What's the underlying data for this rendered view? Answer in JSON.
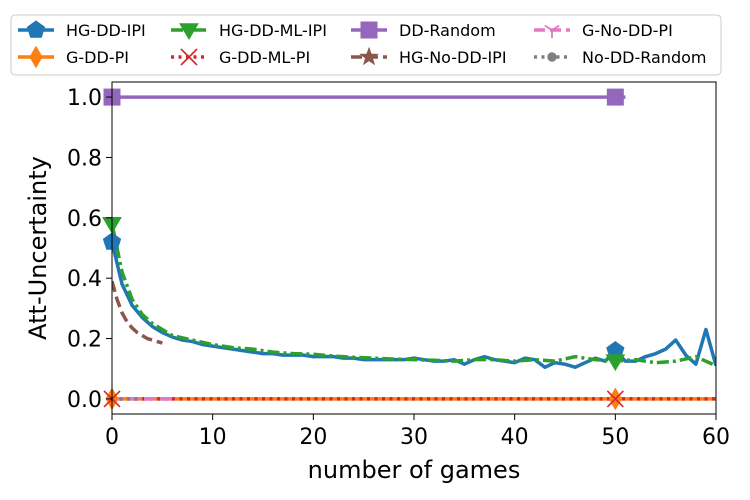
{
  "chart_data": {
    "type": "line",
    "title": "",
    "xlabel": "number of games",
    "ylabel": "Att-Uncertainty",
    "xlim": [
      0,
      60
    ],
    "ylim": [
      -0.05,
      1.05
    ],
    "xticks": [
      0,
      10,
      20,
      30,
      40,
      50,
      60
    ],
    "yticks": [
      0.0,
      0.2,
      0.4,
      0.6,
      0.8,
      1.0
    ],
    "xtick_labels": [
      "0",
      "10",
      "20",
      "30",
      "40",
      "50",
      "60"
    ],
    "ytick_labels": [
      "0.0",
      "0.2",
      "0.4",
      "0.6",
      "0.8",
      "1.0"
    ],
    "grid": false,
    "legend_position": "top",
    "series": [
      {
        "name": "HG-DD-IPI",
        "color": "#1f77b4",
        "dash": "solid",
        "marker": "pentagon",
        "markers_at": [
          0,
          50
        ],
        "x": [
          0,
          1,
          2,
          3,
          4,
          5,
          6,
          7,
          8,
          9,
          10,
          11,
          12,
          13,
          14,
          15,
          16,
          17,
          18,
          19,
          20,
          21,
          22,
          23,
          24,
          25,
          26,
          27,
          28,
          29,
          30,
          31,
          32,
          33,
          34,
          35,
          36,
          37,
          38,
          39,
          40,
          41,
          42,
          43,
          44,
          45,
          46,
          47,
          48,
          49,
          50,
          51,
          52,
          53,
          54,
          55,
          56,
          57,
          58,
          59,
          60
        ],
        "y": [
          0.52,
          0.38,
          0.31,
          0.27,
          0.24,
          0.22,
          0.205,
          0.195,
          0.19,
          0.18,
          0.175,
          0.17,
          0.165,
          0.16,
          0.155,
          0.15,
          0.15,
          0.145,
          0.145,
          0.145,
          0.14,
          0.14,
          0.14,
          0.135,
          0.135,
          0.13,
          0.13,
          0.13,
          0.13,
          0.13,
          0.135,
          0.13,
          0.125,
          0.125,
          0.13,
          0.115,
          0.13,
          0.14,
          0.13,
          0.125,
          0.12,
          0.135,
          0.13,
          0.105,
          0.12,
          0.115,
          0.105,
          0.12,
          0.135,
          0.125,
          0.16,
          0.125,
          0.125,
          0.14,
          0.15,
          0.165,
          0.195,
          0.145,
          0.115,
          0.23,
          0.11
        ]
      },
      {
        "name": "G-DD-PI",
        "color": "#ff7f0e",
        "dash": "solid",
        "marker": "diamond",
        "markers_at": [
          0,
          50
        ],
        "x": [
          0,
          60
        ],
        "y": [
          0.0,
          0.0
        ]
      },
      {
        "name": "HG-DD-ML-IPI",
        "color": "#2ca02c",
        "dash": "dashdot",
        "marker": "triangle-down",
        "markers_at": [
          0,
          50
        ],
        "x": [
          0,
          1,
          2,
          3,
          4,
          5,
          6,
          8,
          10,
          12,
          14,
          16,
          18,
          20,
          22,
          24,
          26,
          28,
          30,
          32,
          34,
          36,
          38,
          40,
          42,
          44,
          46,
          48,
          50,
          52,
          54,
          56,
          58,
          60
        ],
        "y": [
          0.58,
          0.42,
          0.33,
          0.28,
          0.25,
          0.23,
          0.21,
          0.195,
          0.18,
          0.17,
          0.165,
          0.155,
          0.15,
          0.148,
          0.142,
          0.138,
          0.135,
          0.132,
          0.13,
          0.128,
          0.125,
          0.13,
          0.13,
          0.125,
          0.13,
          0.125,
          0.14,
          0.13,
          0.125,
          0.13,
          0.12,
          0.125,
          0.14,
          0.11
        ]
      },
      {
        "name": "G-DD-ML-PI",
        "color": "#d62728",
        "dash": "dotted",
        "marker": "x",
        "markers_at": [
          0,
          50
        ],
        "x": [
          0,
          60
        ],
        "y": [
          0.0,
          0.0
        ]
      },
      {
        "name": "DD-Random",
        "color": "#9467bd",
        "dash": "solid",
        "marker": "square",
        "markers_at": [
          0,
          50
        ],
        "x": [
          0,
          51
        ],
        "y": [
          1.0,
          1.0
        ]
      },
      {
        "name": "HG-No-DD-IPI",
        "color": "#8c564b",
        "dash": "dashed",
        "marker": "star",
        "markers_at": [],
        "x": [
          0,
          0.5,
          1,
          1.5,
          2,
          2.5,
          3,
          3.5,
          4,
          4.5,
          5
        ],
        "y": [
          0.39,
          0.33,
          0.285,
          0.255,
          0.235,
          0.22,
          0.21,
          0.2,
          0.195,
          0.19,
          0.185
        ]
      },
      {
        "name": "G-No-DD-PI",
        "color": "#e377c2",
        "dash": "dashed",
        "marker": "tri-down",
        "markers_at": [],
        "x": [
          0,
          6
        ],
        "y": [
          0.0,
          0.0
        ]
      },
      {
        "name": "No-DD-Random",
        "color": "#7f7f7f",
        "dash": "dotted",
        "marker": "circle",
        "markers_at": [],
        "x": [
          0,
          3
        ],
        "y": [
          0.0,
          0.0
        ]
      }
    ]
  }
}
